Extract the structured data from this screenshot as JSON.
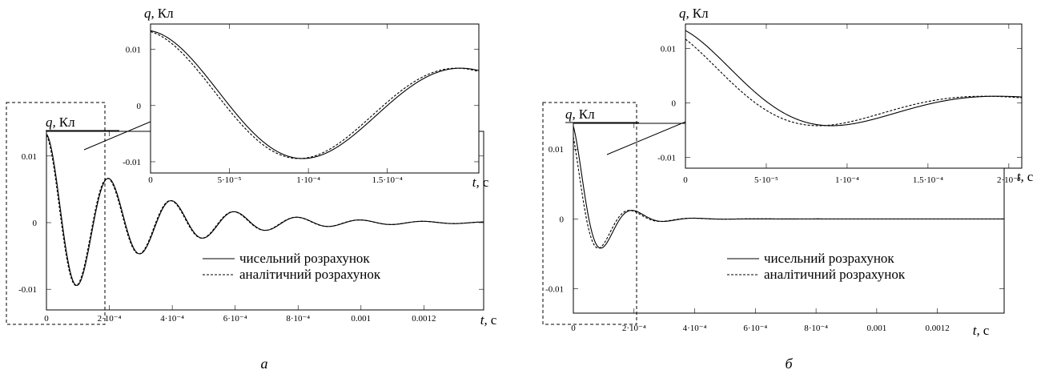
{
  "chart_data": [
    {
      "id": "a-main",
      "type": "line",
      "xlabel_var": "t,",
      "xlabel_unit": "с",
      "ylabel_var": "q,",
      "ylabel_unit": "Кл",
      "xlim": [
        0,
        0.00139
      ],
      "ylim": [
        -0.0131,
        0.0137
      ],
      "x_ticks": [
        {
          "v": 0,
          "t": "0"
        },
        {
          "v": 0.0002,
          "t": "2·10⁻⁴"
        },
        {
          "v": 0.0004,
          "t": "4·10⁻⁴"
        },
        {
          "v": 0.0006,
          "t": "6·10⁻⁴"
        },
        {
          "v": 0.0008,
          "t": "8·10⁻⁴"
        },
        {
          "v": 0.001,
          "t": "0.001"
        },
        {
          "v": 0.0012,
          "t": "0.0012"
        }
      ],
      "y_ticks": [
        {
          "v": 0.01,
          "t": "0.01"
        },
        {
          "v": 0,
          "t": "0"
        },
        {
          "v": -0.01,
          "t": "-0.01"
        }
      ],
      "series": [
        {
          "name": "чисельний розрахунок",
          "style": "solid",
          "q0": 0.0133,
          "decay": 3500,
          "period": 0.0002,
          "shift": 0
        },
        {
          "name": "аналітичний розрахунок",
          "style": "dashed",
          "q0": 0.0133,
          "decay": 3500,
          "period": 0.0002,
          "shift": -2.5e-06
        }
      ],
      "legend": "bottom-right"
    },
    {
      "id": "a-inset",
      "type": "line",
      "xlabel_var": "t,",
      "xlabel_unit": "с",
      "ylabel_var": "q,",
      "ylabel_unit": "Кл",
      "xlim": [
        0,
        0.000208
      ],
      "ylim": [
        -0.012,
        0.0145
      ],
      "x_ticks": [
        {
          "v": 0,
          "t": "0"
        },
        {
          "v": 5e-05,
          "t": "5·10⁻⁵"
        },
        {
          "v": 0.0001,
          "t": "1·10⁻⁴"
        },
        {
          "v": 0.00015,
          "t": "1.5·10⁻⁴"
        }
      ],
      "y_ticks": [
        {
          "v": 0.01,
          "t": "0.01"
        },
        {
          "v": 0,
          "t": "0"
        },
        {
          "v": -0.01,
          "t": "-0.01"
        }
      ],
      "series": [
        {
          "name": "чисельний розрахунок",
          "style": "solid",
          "q0": 0.0133,
          "decay": 3500,
          "period": 0.0002,
          "shift": 0
        },
        {
          "name": "аналітичний розрахунок",
          "style": "dashed",
          "q0": 0.0133,
          "decay": 3500,
          "period": 0.0002,
          "shift": -2.5e-06
        }
      ]
    },
    {
      "id": "b-main",
      "type": "line",
      "xlabel_var": "t,",
      "xlabel_unit": "с",
      "ylabel_var": "q,",
      "ylabel_unit": "Кл",
      "xlim": [
        0,
        0.00142
      ],
      "ylim": [
        -0.0135,
        0.0137
      ],
      "x_ticks": [
        {
          "v": 0,
          "t": "0"
        },
        {
          "v": 0.0002,
          "t": "2·10⁻⁴"
        },
        {
          "v": 0.0004,
          "t": "4·10⁻⁴"
        },
        {
          "v": 0.0006,
          "t": "6·10⁻⁴"
        },
        {
          "v": 0.0008,
          "t": "8·10⁻⁴"
        },
        {
          "v": 0.001,
          "t": "0.001"
        },
        {
          "v": 0.0012,
          "t": "0.0012"
        }
      ],
      "y_ticks": [
        {
          "v": 0.01,
          "t": "0.01"
        },
        {
          "v": 0,
          "t": "0"
        },
        {
          "v": -0.01,
          "t": "-0.01"
        }
      ],
      "series": [
        {
          "name": "чисельний розрахунок",
          "style": "solid",
          "q0": 0.0133,
          "decay": 12000,
          "period": 0.000205,
          "shift": 0
        },
        {
          "name": "аналітичний розрахунок",
          "style": "dashed",
          "q0": 0.0133,
          "decay": 12000,
          "period": 0.000205,
          "shift": -8e-06
        }
      ],
      "legend": "bottom-right"
    },
    {
      "id": "b-inset",
      "type": "line",
      "xlabel_var": "t,",
      "xlabel_unit": "с",
      "ylabel_var": "q,",
      "ylabel_unit": "Кл",
      "xlim": [
        0,
        0.000208
      ],
      "ylim": [
        -0.012,
        0.0145
      ],
      "x_ticks": [
        {
          "v": 0,
          "t": "0"
        },
        {
          "v": 5e-05,
          "t": "5·10⁻⁵"
        },
        {
          "v": 0.0001,
          "t": "1·10⁻⁴"
        },
        {
          "v": 0.00015,
          "t": "1.5·10⁻⁴"
        },
        {
          "v": 0.0002,
          "t": "2·10⁻⁴"
        }
      ],
      "y_ticks": [
        {
          "v": 0.01,
          "t": "0.01"
        },
        {
          "v": 0,
          "t": "0"
        },
        {
          "v": -0.01,
          "t": "-0.01"
        }
      ],
      "series": [
        {
          "name": "чисельний розрахунок",
          "style": "solid",
          "q0": 0.0133,
          "decay": 12000,
          "period": 0.000205,
          "shift": 0
        },
        {
          "name": "аналітичний розрахунок",
          "style": "dashed",
          "q0": 0.0133,
          "decay": 12000,
          "period": 0.000205,
          "shift": -8e-06
        }
      ]
    }
  ],
  "captions": {
    "a": "а",
    "b": "б"
  }
}
